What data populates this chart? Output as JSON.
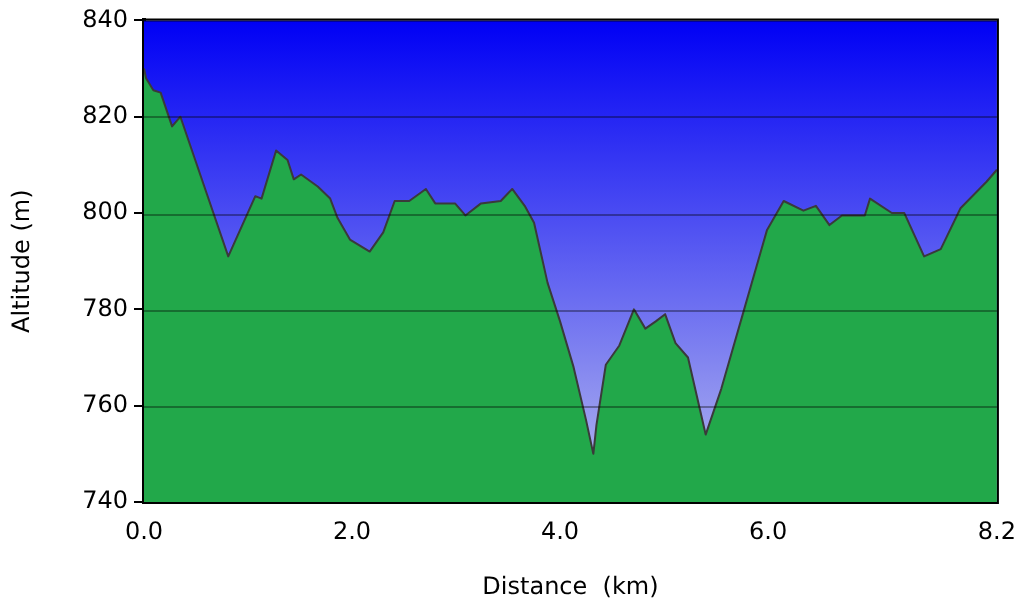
{
  "chart_data": {
    "type": "area",
    "xlabel": "Distance  (km)",
    "ylabel": "Altitude (m)",
    "xlim": [
      0,
      8.2
    ],
    "ylim": [
      740,
      840
    ],
    "xticks": [
      {
        "value": 0,
        "label": "0.0"
      },
      {
        "value": 2,
        "label": "2.0"
      },
      {
        "value": 4,
        "label": "4.0"
      },
      {
        "value": 6,
        "label": "6.0"
      },
      {
        "value": 8.2,
        "label": "8.2"
      }
    ],
    "yticks": [
      740,
      760,
      780,
      800,
      820,
      840
    ],
    "grid": "y",
    "legend": false,
    "x": [
      0,
      0.02,
      0.09,
      0.16,
      0.27,
      0.35,
      0.81,
      1.07,
      1.13,
      1.27,
      1.38,
      1.44,
      1.51,
      1.67,
      1.79,
      1.86,
      1.98,
      2.17,
      2.3,
      2.41,
      2.55,
      2.71,
      2.8,
      2.99,
      3.09,
      3.24,
      3.43,
      3.54,
      3.66,
      3.75,
      3.88,
      4.0,
      4.13,
      4.25,
      4.32,
      4.35,
      4.44,
      4.57,
      4.71,
      4.82,
      4.92,
      5.01,
      5.11,
      5.23,
      5.4,
      5.55,
      5.77,
      5.99,
      6.15,
      6.34,
      6.46,
      6.59,
      6.71,
      6.93,
      6.98,
      7.19,
      7.31,
      7.5,
      7.66,
      7.85,
      8.1,
      8.2
    ],
    "series": [
      {
        "color": "#22a84a",
        "values": [
          830,
          828,
          825.5,
          825,
          818,
          820,
          791,
          803.5,
          803,
          813,
          811,
          807,
          808,
          805.5,
          803,
          799,
          794.5,
          792,
          796,
          802.5,
          802.5,
          805,
          802,
          802,
          799.5,
          802,
          802.5,
          805,
          801.5,
          798,
          785.5,
          777.5,
          768,
          757,
          750,
          756,
          768.5,
          772.5,
          780,
          776,
          777.5,
          779,
          773,
          770,
          754,
          763.5,
          780,
          796.5,
          802.5,
          800.5,
          801.5,
          797.5,
          799.5,
          799.5,
          803,
          800,
          800,
          791,
          792.5,
          801,
          806.5,
          809
        ]
      }
    ]
  }
}
